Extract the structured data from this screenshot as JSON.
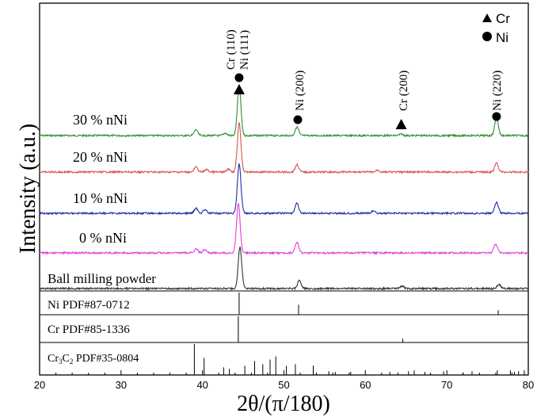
{
  "chart_data": {
    "type": "line",
    "title": "",
    "xlabel": "2θ/(π/180)",
    "ylabel": "Intensity (a.u.)",
    "xlim": [
      20,
      80
    ],
    "x_ticks": [
      20,
      30,
      40,
      50,
      60,
      70,
      80
    ],
    "legend": {
      "placement": "top-right",
      "entries": [
        {
          "marker": "triangle",
          "label": "Cr"
        },
        {
          "marker": "circle",
          "label": "Ni"
        }
      ]
    },
    "series": [
      {
        "name": "30 % nNi",
        "color": "#2f8f2f",
        "peaks": [
          [
            39.2,
            0.12
          ],
          [
            42.8,
            0.05
          ],
          [
            44.5,
            1.0
          ],
          [
            51.6,
            0.17
          ],
          [
            64.4,
            0.03
          ],
          [
            76.1,
            0.36
          ]
        ]
      },
      {
        "name": "20 % nNi",
        "color": "#d9534f",
        "peaks": [
          [
            39.2,
            0.1
          ],
          [
            40.5,
            0.05
          ],
          [
            43.2,
            0.06
          ],
          [
            44.5,
            1.0
          ],
          [
            51.6,
            0.15
          ],
          [
            61.5,
            0.04
          ],
          [
            76.1,
            0.18
          ]
        ]
      },
      {
        "name": "10 % nNi",
        "color": "#1f2fa6",
        "peaks": [
          [
            39.2,
            0.1
          ],
          [
            40.3,
            0.07
          ],
          [
            44.5,
            1.0
          ],
          [
            51.6,
            0.2
          ],
          [
            61.0,
            0.05
          ],
          [
            76.1,
            0.22
          ]
        ]
      },
      {
        "name": "0 % nNi",
        "color": "#e040e0",
        "peaks": [
          [
            39.2,
            0.08
          ],
          [
            40.3,
            0.07
          ],
          [
            44.4,
            1.0
          ],
          [
            51.6,
            0.22
          ],
          [
            76.0,
            0.18
          ]
        ]
      },
      {
        "name": "Ball milling powder",
        "color": "#333333",
        "peaks": [
          [
            44.6,
            1.0
          ],
          [
            51.9,
            0.2
          ],
          [
            64.5,
            0.06
          ],
          [
            76.4,
            0.1
          ]
        ]
      }
    ],
    "annotations": [
      {
        "text": "Cr (110)",
        "x": 44.5,
        "marker": "triangle"
      },
      {
        "text": "Ni (111)",
        "x": 44.5,
        "marker": "circle"
      },
      {
        "text": "Ni (200)",
        "x": 51.7,
        "marker": "circle"
      },
      {
        "text": "Cr (200)",
        "x": 64.4,
        "marker": "triangle"
      },
      {
        "text": "Ni (220)",
        "x": 76.1,
        "marker": "circle"
      }
    ],
    "reference_patterns": [
      {
        "label": "Ni PDF#87-0712",
        "lines": [
          [
            44.5,
            1.0
          ],
          [
            51.8,
            0.45
          ],
          [
            76.3,
            0.2
          ]
        ]
      },
      {
        "label": "Cr PDF#85-1336",
        "lines": [
          [
            44.4,
            1.0
          ],
          [
            64.6,
            0.15
          ]
        ]
      },
      {
        "label_prefix": "Cr",
        "label_sub1": "3",
        "label_mid": "C",
        "label_sub2": "2",
        "label_suffix": " PDF#35-0804",
        "lines": [
          [
            39.0,
            1.0
          ],
          [
            40.2,
            0.55
          ],
          [
            42.6,
            0.25
          ],
          [
            43.3,
            0.2
          ],
          [
            45.2,
            0.3
          ],
          [
            46.4,
            0.45
          ],
          [
            47.4,
            0.35
          ],
          [
            48.3,
            0.5
          ],
          [
            49.0,
            0.6
          ],
          [
            50.3,
            0.3
          ],
          [
            51.4,
            0.35
          ],
          [
            53.6,
            0.3
          ],
          [
            55.5,
            0.12
          ],
          [
            56.3,
            0.1
          ],
          [
            58.2,
            0.1
          ],
          [
            63.0,
            0.1
          ],
          [
            65.3,
            0.12
          ],
          [
            66.0,
            0.15
          ],
          [
            67.3,
            0.1
          ],
          [
            69.6,
            0.12
          ],
          [
            72.0,
            0.08
          ],
          [
            73.1,
            0.12
          ],
          [
            76.2,
            0.15
          ],
          [
            77.8,
            0.15
          ],
          [
            78.3,
            0.1
          ],
          [
            78.8,
            0.12
          ],
          [
            79.5,
            0.15
          ]
        ]
      }
    ]
  }
}
